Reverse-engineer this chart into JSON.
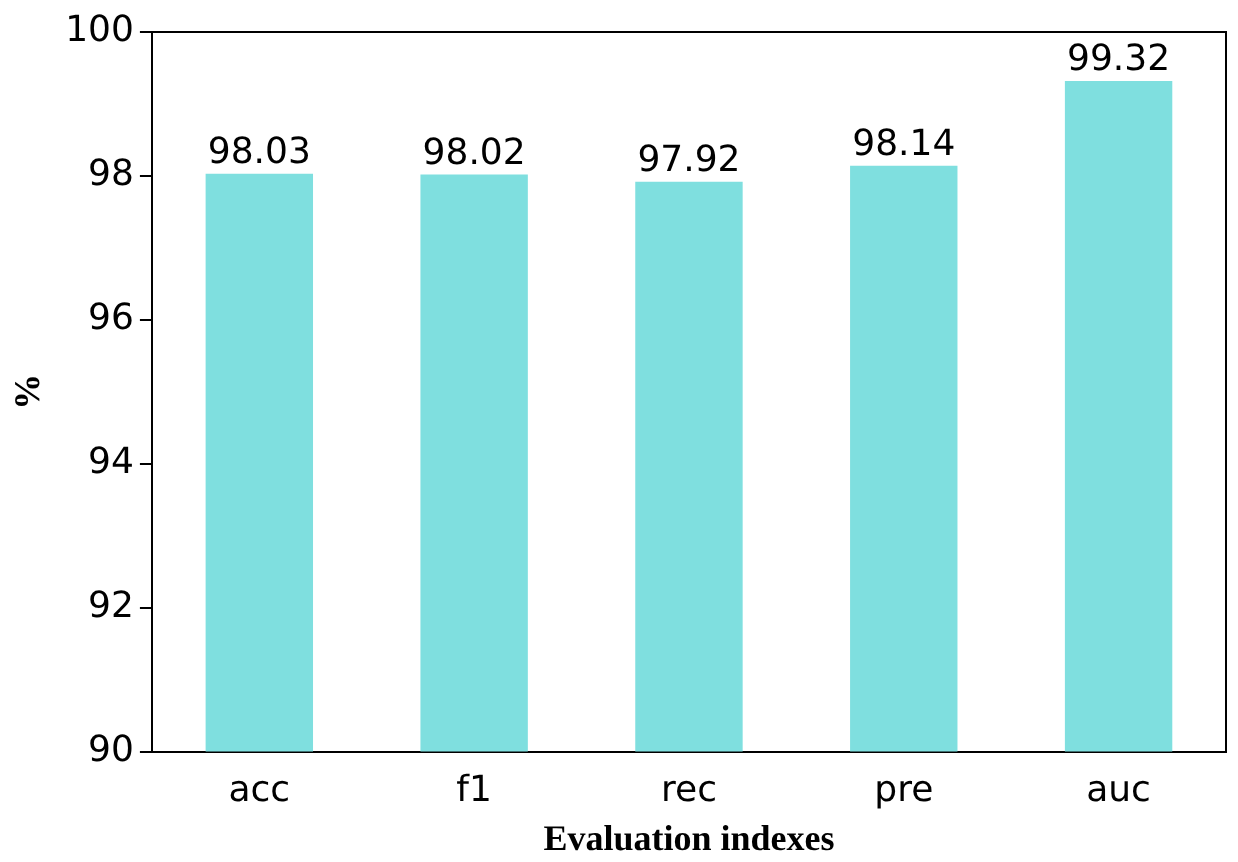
{
  "chart_data": {
    "type": "bar",
    "xlabel": "Evaluation indexes",
    "ylabel": "%",
    "categories": [
      "acc",
      "f1",
      "rec",
      "pre",
      "auc"
    ],
    "values": [
      98.03,
      98.02,
      97.92,
      98.14,
      99.32
    ],
    "color": "#7fdfdf",
    "ylim": [
      90,
      100
    ],
    "yticks": [
      90,
      92,
      94,
      96,
      98,
      100
    ],
    "grid": false,
    "data_labels": true
  }
}
